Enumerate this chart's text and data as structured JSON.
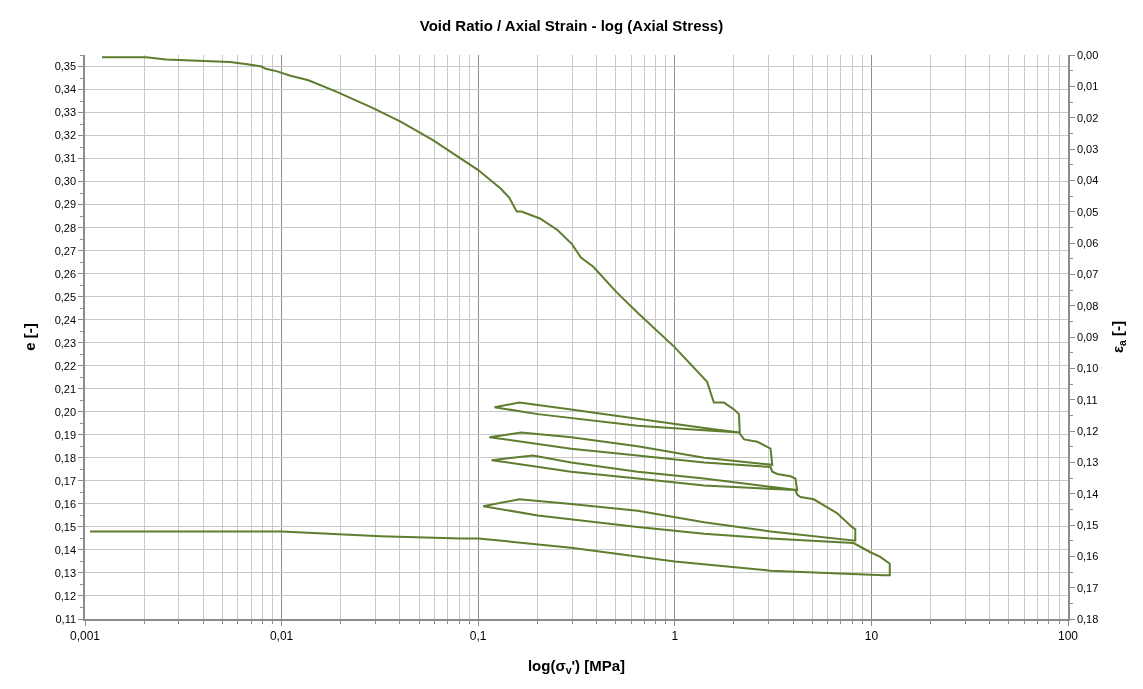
{
  "chart_data": {
    "type": "line",
    "title": "Void Ratio / Axial Strain - log (Axial Stress)",
    "xlabel": "log(σ$_{v}$') [MPa]",
    "ylabel": "e [-]",
    "y2label": "ε$_{a}$ [-]",
    "series": [
      {
        "color": "#5e7d2f",
        "x": [
          0.00122,
          0.00205,
          0.00258,
          0.00546,
          0.0067,
          0.0079,
          0.0083,
          0.0094,
          0.0111,
          0.0137,
          0.0191,
          0.029,
          0.0405,
          0.0589,
          0.1,
          0.13,
          0.144,
          0.157,
          0.166,
          0.206,
          0.253,
          0.299,
          0.333,
          0.385,
          0.505,
          0.647,
          1.0,
          1.46,
          1.58,
          1.78,
          2.0,
          2.12,
          2.14,
          1.41,
          0.647,
          0.297,
          0.162,
          0.121,
          0.201,
          0.647,
          1.41,
          2.12,
          2.25,
          2.63,
          3.07,
          3.13,
          1.41,
          0.647,
          0.297,
          0.166,
          0.114,
          0.297,
          0.647,
          1.41,
          3.07,
          3.13,
          3.32,
          3.88,
          4.11,
          4.19,
          1.41,
          0.647,
          0.297,
          0.19,
          0.117,
          0.297,
          0.647,
          1.41,
          4.11,
          4.19,
          4.36,
          5.09,
          6.68,
          7.96,
          8.28,
          8.28,
          3.07,
          1.41,
          0.647,
          0.297,
          0.162,
          0.106,
          0.201,
          0.647,
          1.41,
          3.07,
          8.12,
          9.87,
          11.1,
          12.4,
          12.4,
          11.5,
          3.07,
          1.0,
          0.297,
          0.1,
          0.0817,
          0.0319,
          0.01,
          0.00218,
          0.00106
        ],
        "values": [
          0.354,
          0.354,
          0.353,
          0.352,
          0.351,
          0.35,
          0.349,
          0.348,
          0.346,
          0.344,
          0.339,
          0.332,
          0.326,
          0.318,
          0.305,
          0.297,
          0.293,
          0.287,
          0.287,
          0.284,
          0.279,
          0.273,
          0.267,
          0.263,
          0.252,
          0.243,
          0.228,
          0.213,
          0.204,
          0.204,
          0.201,
          0.199,
          0.191,
          0.193,
          0.197,
          0.201,
          0.204,
          0.202,
          0.199,
          0.194,
          0.192,
          0.191,
          0.188,
          0.187,
          0.184,
          0.177,
          0.18,
          0.185,
          0.189,
          0.191,
          0.189,
          0.184,
          0.181,
          0.178,
          0.176,
          0.174,
          0.173,
          0.172,
          0.171,
          0.166,
          0.171,
          0.174,
          0.178,
          0.181,
          0.179,
          0.174,
          0.171,
          0.168,
          0.166,
          0.164,
          0.163,
          0.162,
          0.156,
          0.15,
          0.149,
          0.144,
          0.148,
          0.152,
          0.157,
          0.16,
          0.162,
          0.159,
          0.155,
          0.15,
          0.147,
          0.145,
          0.143,
          0.139,
          0.137,
          0.134,
          0.129,
          0.129,
          0.131,
          0.135,
          0.141,
          0.145,
          0.145,
          0.146,
          0.148,
          0.148,
          0.148
        ]
      }
    ],
    "log": "x",
    "xlim": [
      0.001,
      100
    ],
    "xticks": [
      {
        "value": 0.001,
        "label": "0,001"
      },
      {
        "value": 0.01,
        "label": "0,01"
      },
      {
        "value": 0.1,
        "label": "0,1"
      },
      1,
      10,
      100
    ],
    "ylim": [
      0.11,
      0.355
    ],
    "yticks": [
      {
        "value": 0.11,
        "label": "0,11"
      },
      {
        "value": 0.12,
        "label": "0,12"
      },
      {
        "value": 0.13,
        "label": "0,13"
      },
      {
        "value": 0.14,
        "label": "0,14"
      },
      {
        "value": 0.15,
        "label": "0,15"
      },
      {
        "value": 0.16,
        "label": "0,16"
      },
      {
        "value": 0.17,
        "label": "0,17"
      },
      {
        "value": 0.18,
        "label": "0,18"
      },
      {
        "value": 0.19,
        "label": "0,19"
      },
      {
        "value": 0.2,
        "label": "0,20"
      },
      {
        "value": 0.21,
        "label": "0,21"
      },
      {
        "value": 0.22,
        "label": "0,22"
      },
      {
        "value": 0.23,
        "label": "0,23"
      },
      {
        "value": 0.24,
        "label": "0,24"
      },
      {
        "value": 0.25,
        "label": "0,25"
      },
      {
        "value": 0.26,
        "label": "0,26"
      },
      {
        "value": 0.27,
        "label": "0,27"
      },
      {
        "value": 0.28,
        "label": "0,28"
      },
      {
        "value": 0.29,
        "label": "0,29"
      },
      {
        "value": 0.3,
        "label": "0,30"
      },
      {
        "value": 0.31,
        "label": "0,31"
      },
      {
        "value": 0.32,
        "label": "0,32"
      },
      {
        "value": 0.33,
        "label": "0,33"
      },
      {
        "value": 0.34,
        "label": "0,34"
      },
      {
        "value": 0.35,
        "label": "0,35"
      }
    ],
    "y2lim": [
      0.18,
      0.0
    ],
    "y2ticks": [
      {
        "value": 0.0,
        "label": "0,00"
      },
      {
        "value": 0.01,
        "label": "0,01"
      },
      {
        "value": 0.02,
        "label": "0,02"
      },
      {
        "value": 0.03,
        "label": "0,03"
      },
      {
        "value": 0.04,
        "label": "0,04"
      },
      {
        "value": 0.05,
        "label": "0,05"
      },
      {
        "value": 0.06,
        "label": "0,06"
      },
      {
        "value": 0.07,
        "label": "0,07"
      },
      {
        "value": 0.08,
        "label": "0,08"
      },
      {
        "value": 0.09,
        "label": "0,09"
      },
      {
        "value": 0.1,
        "label": "0,10"
      },
      {
        "value": 0.11,
        "label": "0,11"
      },
      {
        "value": 0.12,
        "label": "0,12"
      },
      {
        "value": 0.13,
        "label": "0,13"
      },
      {
        "value": 0.14,
        "label": "0,14"
      },
      {
        "value": 0.15,
        "label": "0,15"
      },
      {
        "value": 0.16,
        "label": "0,16"
      },
      {
        "value": 0.17,
        "label": "0,17"
      },
      {
        "value": 0.18,
        "label": "0,18"
      }
    ],
    "grid": true,
    "line_style": "solid"
  }
}
